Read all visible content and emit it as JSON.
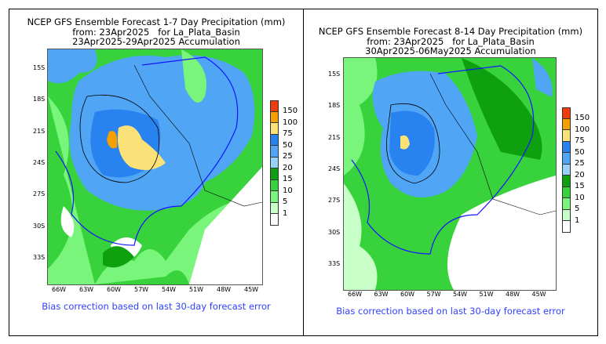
{
  "panels": [
    {
      "title_lines": [
        "NCEP GFS Ensemble Forecast 1-7 Day Precipitation (mm)",
        "from: 23Apr2025   for La_Plata_Basin",
        "23Apr2025-29Apr2025 Accumulation"
      ],
      "note": "Bias correction based on last 30-day forecast error"
    },
    {
      "title_lines": [
        "NCEP GFS Ensemble Forecast 8-14 Day Precipitation (mm)",
        "from: 23Apr2025   for La_Plata_Basin",
        "30Apr2025-06May2025 Accumulation"
      ],
      "note": "Bias correction based on last 30-day forecast error"
    }
  ],
  "lat_labels": [
    "15S",
    "18S",
    "21S",
    "24S",
    "27S",
    "30S",
    "33S"
  ],
  "lon_labels": [
    "66W",
    "63W",
    "60W",
    "57W",
    "54W",
    "51W",
    "48W",
    "45W"
  ],
  "legend": {
    "labels": [
      "150",
      "100",
      "75",
      "50",
      "25",
      "20",
      "15",
      "10",
      "5",
      "1"
    ],
    "colors": [
      "#f03c0a",
      "#f5a000",
      "#fae178",
      "#2882f0",
      "#50a5f5",
      "#96d2fa",
      "#0fa00f",
      "#37d23c",
      "#78f57a",
      "#c8ffc8",
      "#ffffff"
    ]
  },
  "colors": {
    "basin_outline": "#1414ff",
    "note_text": "#3040ff"
  }
}
